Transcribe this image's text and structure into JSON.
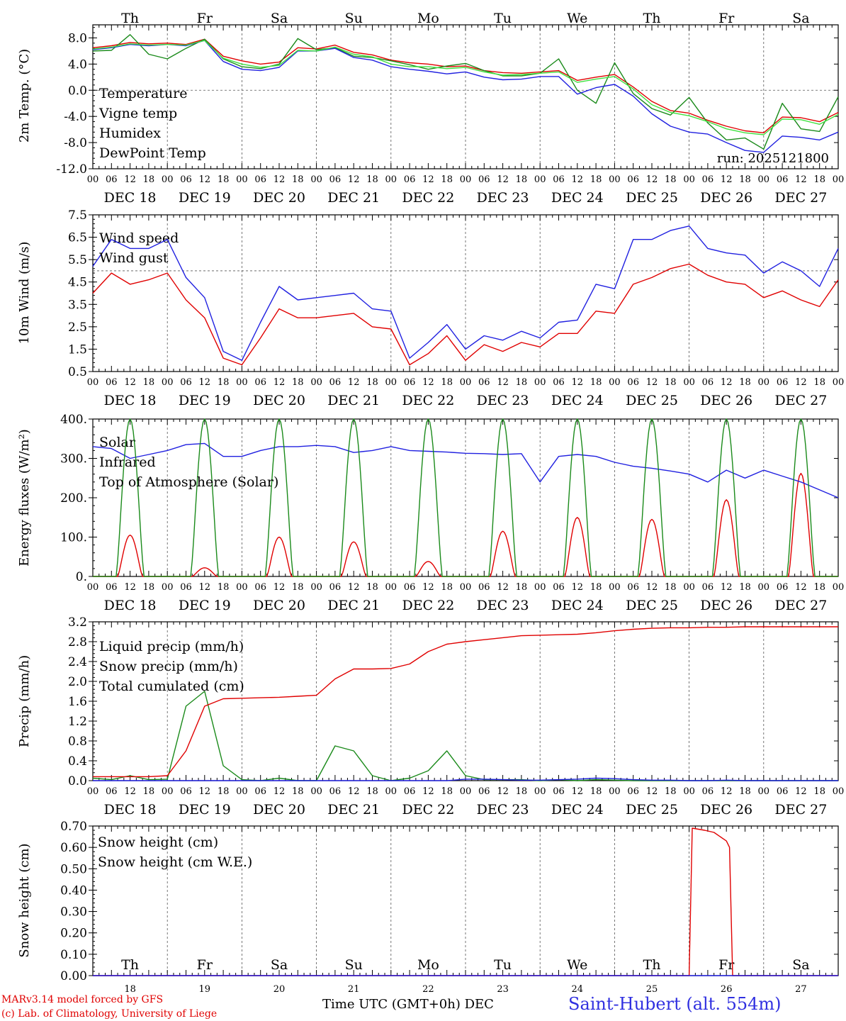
{
  "chart_data": [
    {
      "type": "line",
      "ylabel": "2m Temp. (°C)",
      "ylim": [
        -12,
        10
      ],
      "yticks": [
        8.0,
        4.0,
        0.0,
        -4.0,
        -8.0,
        -12.0
      ],
      "ytick_labels": [
        "8.0",
        "4.0",
        "0.0",
        "-4.0",
        "-8.0",
        "-12.0"
      ],
      "reference_line": 0,
      "annotation": "run: 2025121800",
      "x_hours": [
        0,
        6,
        12,
        18,
        24,
        30,
        36,
        42,
        48,
        54,
        60,
        66,
        72,
        78,
        84,
        90,
        96,
        102,
        108,
        114,
        120,
        126,
        132,
        138,
        144,
        150,
        156,
        162,
        168,
        174,
        180,
        186,
        192,
        198,
        204,
        210,
        216,
        222,
        228,
        234,
        240
      ],
      "series": [
        {
          "name": "Temperature",
          "color": "#e00000",
          "values": [
            6.5,
            6.8,
            7.3,
            7.1,
            7.2,
            7.0,
            7.8,
            5.2,
            4.5,
            4.0,
            4.3,
            6.5,
            6.3,
            6.9,
            5.8,
            5.4,
            4.6,
            4.2,
            4.0,
            3.6,
            3.7,
            3.0,
            2.7,
            2.6,
            2.8,
            3.0,
            1.5,
            2.0,
            2.4,
            0.5,
            -1.7,
            -3.1,
            -3.5,
            -4.6,
            -5.5,
            -6.2,
            -6.5,
            -4.1,
            -4.2,
            -4.8,
            -3.4
          ]
        },
        {
          "name": "Vigne temp",
          "color": "#1a8a1a",
          "values": [
            6.0,
            6.1,
            8.5,
            5.5,
            4.8,
            6.4,
            7.8,
            4.8,
            3.6,
            3.3,
            4.0,
            7.9,
            6.2,
            6.5,
            5.2,
            5.0,
            4.5,
            3.9,
            3.2,
            3.7,
            4.1,
            3.0,
            2.2,
            2.2,
            2.6,
            4.8,
            0.0,
            -2.0,
            4.2,
            -0.5,
            -2.8,
            -3.8,
            -1.1,
            -5.0,
            -7.6,
            -7.3,
            -9.0,
            -2.0,
            -5.9,
            -6.3,
            -1.0
          ]
        },
        {
          "name": "Humidex",
          "color": "#2020e0",
          "values": [
            6.2,
            6.5,
            7.0,
            6.8,
            7.0,
            6.8,
            7.6,
            4.4,
            3.2,
            3.0,
            3.5,
            6.0,
            6.0,
            6.4,
            5.0,
            4.6,
            3.6,
            3.2,
            2.9,
            2.5,
            2.8,
            2.0,
            1.6,
            1.7,
            2.1,
            2.1,
            -0.6,
            0.4,
            0.9,
            -0.9,
            -3.6,
            -5.5,
            -6.4,
            -6.7,
            -8.0,
            -9.2,
            -9.5,
            -7.0,
            -7.2,
            -7.6,
            -6.4
          ]
        },
        {
          "name": "DewPoint Temp",
          "color": "#40e040",
          "values": [
            6.3,
            6.6,
            7.1,
            6.9,
            7.0,
            6.9,
            7.6,
            4.9,
            4.0,
            3.5,
            3.8,
            6.1,
            6.0,
            6.6,
            5.5,
            5.1,
            4.0,
            3.6,
            3.6,
            3.3,
            3.5,
            2.8,
            2.3,
            2.4,
            2.6,
            2.8,
            1.2,
            1.7,
            2.1,
            0.2,
            -2.2,
            -3.4,
            -3.9,
            -4.8,
            -5.9,
            -6.5,
            -6.8,
            -4.4,
            -4.5,
            -5.2,
            -3.7
          ]
        }
      ]
    },
    {
      "type": "line",
      "ylabel": "10m Wind (m/s)",
      "ylim": [
        0.5,
        7.5
      ],
      "yticks": [
        7.5,
        6.5,
        5.5,
        4.5,
        3.5,
        2.5,
        1.5,
        0.5
      ],
      "ytick_labels": [
        "7.5",
        "6.5",
        "5.5",
        "4.5",
        "3.5",
        "2.5",
        "1.5",
        "0.5"
      ],
      "reference_line": 5.0,
      "x_hours": [
        0,
        6,
        12,
        18,
        24,
        30,
        36,
        42,
        48,
        54,
        60,
        66,
        72,
        78,
        84,
        90,
        96,
        102,
        108,
        114,
        120,
        126,
        132,
        138,
        144,
        150,
        156,
        162,
        168,
        174,
        180,
        186,
        192,
        198,
        204,
        210,
        216,
        222,
        228,
        234,
        240
      ],
      "series": [
        {
          "name": "Wind speed",
          "color": "#e00000",
          "values": [
            4.0,
            4.9,
            4.4,
            4.6,
            4.9,
            3.7,
            2.9,
            1.1,
            0.8,
            2.0,
            3.3,
            2.9,
            2.9,
            3.0,
            3.1,
            2.5,
            2.4,
            0.8,
            1.3,
            2.1,
            1.0,
            1.7,
            1.4,
            1.8,
            1.6,
            2.2,
            2.2,
            3.2,
            3.1,
            4.4,
            4.7,
            5.1,
            5.3,
            4.8,
            4.5,
            4.4,
            3.8,
            4.1,
            3.7,
            3.4,
            4.6
          ]
        },
        {
          "name": "Wind gust",
          "color": "#2020e0",
          "values": [
            5.2,
            6.4,
            6.0,
            6.0,
            6.4,
            4.7,
            3.8,
            1.4,
            1.0,
            2.7,
            4.3,
            3.7,
            3.8,
            3.9,
            4.0,
            3.3,
            3.2,
            1.1,
            1.8,
            2.6,
            1.5,
            2.1,
            1.9,
            2.3,
            2.0,
            2.7,
            2.8,
            4.4,
            4.2,
            6.4,
            6.4,
            6.8,
            7.0,
            6.0,
            5.8,
            5.7,
            4.9,
            5.4,
            5.0,
            4.3,
            6.0
          ]
        }
      ]
    },
    {
      "type": "line",
      "ylabel": "Energy fluxes (W/m²)",
      "ylim": [
        0,
        400
      ],
      "yticks": [
        400,
        300,
        200,
        100,
        0
      ],
      "ytick_labels": [
        "400.",
        "300.",
        "200.",
        "100.",
        "0."
      ],
      "x_hours": [
        0,
        6,
        12,
        18,
        24,
        30,
        36,
        42,
        48,
        54,
        60,
        66,
        72,
        78,
        84,
        90,
        96,
        102,
        108,
        114,
        120,
        126,
        132,
        138,
        144,
        150,
        156,
        162,
        168,
        174,
        180,
        186,
        192,
        198,
        204,
        210,
        216,
        222,
        228,
        234,
        240
      ],
      "daily_peaks_hour": [
        12,
        36,
        60,
        84,
        108,
        132,
        156,
        180,
        204,
        228
      ],
      "series": [
        {
          "name": "Solar",
          "color": "#e00000",
          "peaks": [
            105,
            22,
            100,
            88,
            38,
            115,
            150,
            145,
            195,
            262
          ]
        },
        {
          "name": "Infrared",
          "color": "#2020e0",
          "values": [
            330,
            325,
            300,
            310,
            320,
            335,
            338,
            305,
            305,
            320,
            330,
            330,
            333,
            330,
            315,
            320,
            330,
            320,
            318,
            316,
            313,
            312,
            310,
            312,
            240,
            305,
            310,
            305,
            290,
            280,
            275,
            268,
            260,
            240,
            270,
            250,
            270,
            255,
            240,
            220,
            200
          ]
        },
        {
          "name": "Top of Atmosphere (Solar)",
          "color": "#1a8a1a",
          "peaks": [
            400,
            400,
            400,
            400,
            400,
            400,
            400,
            400,
            400,
            400
          ]
        }
      ]
    },
    {
      "type": "line",
      "ylabel": "Precip (mm/h)",
      "ylim": [
        0,
        3.2
      ],
      "yticks": [
        3.2,
        2.8,
        2.4,
        2.0,
        1.6,
        1.2,
        0.8,
        0.4,
        0.0
      ],
      "ytick_labels": [
        "3.2",
        "2.8",
        "2.4",
        "2.0",
        "1.6",
        "1.2",
        "0.8",
        "0.4",
        "0.0"
      ],
      "x_hours": [
        0,
        6,
        12,
        18,
        24,
        30,
        36,
        42,
        48,
        54,
        60,
        66,
        72,
        78,
        84,
        90,
        96,
        102,
        108,
        114,
        120,
        126,
        132,
        138,
        144,
        150,
        156,
        162,
        168,
        174,
        180,
        186,
        192,
        198,
        204,
        210,
        216,
        222,
        228,
        234,
        240
      ],
      "series": [
        {
          "name": "Liquid precip (mm/h)",
          "color": "#1a8a1a",
          "values": [
            0.05,
            0.02,
            0.1,
            0.02,
            0.03,
            1.5,
            1.8,
            0.3,
            0.02,
            0.0,
            0.05,
            0.0,
            0.0,
            0.7,
            0.6,
            0.1,
            0.0,
            0.05,
            0.2,
            0.6,
            0.1,
            0.02,
            0.02,
            0.02,
            0.0,
            0.02,
            0.0,
            0.02,
            0.01,
            0.0,
            0.0,
            0.0,
            0.0,
            0.0,
            0.0,
            0.0,
            0.0,
            0.0,
            0.0,
            0.0,
            0.0
          ]
        },
        {
          "name": "Snow precip (mm/h)",
          "color": "#2020e0",
          "values": [
            0.0,
            0.0,
            0.0,
            0.0,
            0.0,
            0.0,
            0.0,
            0.0,
            0.0,
            0.0,
            0.0,
            0.0,
            0.0,
            0.0,
            0.0,
            0.0,
            0.0,
            0.0,
            0.0,
            0.0,
            0.03,
            0.03,
            0.02,
            0.01,
            0.01,
            0.02,
            0.03,
            0.05,
            0.04,
            0.02,
            0.01,
            0.01,
            0.0,
            0.0,
            0.01,
            0.0,
            0.0,
            0.0,
            0.0,
            0.0,
            0.0
          ]
        },
        {
          "name": "Total cumulated (cm)",
          "color": "#e00000",
          "values": [
            0.08,
            0.08,
            0.08,
            0.08,
            0.1,
            0.6,
            1.5,
            1.65,
            1.66,
            1.67,
            1.68,
            1.7,
            1.72,
            2.05,
            2.25,
            2.25,
            2.26,
            2.35,
            2.6,
            2.75,
            2.8,
            2.84,
            2.88,
            2.92,
            2.93,
            2.94,
            2.95,
            2.98,
            3.02,
            3.05,
            3.07,
            3.08,
            3.08,
            3.09,
            3.09,
            3.1,
            3.1,
            3.1,
            3.1,
            3.1,
            3.1
          ]
        }
      ]
    },
    {
      "type": "line",
      "ylabel": "Snow height (cm)",
      "ylim": [
        0,
        0.7
      ],
      "yticks": [
        0.7,
        0.6,
        0.5,
        0.4,
        0.3,
        0.2,
        0.1,
        0.0
      ],
      "ytick_labels": [
        "0.70",
        "0.60",
        "0.50",
        "0.40",
        "0.30",
        "0.20",
        "0.10",
        "0.00"
      ],
      "x_hours": [
        0,
        6,
        12,
        18,
        24,
        30,
        36,
        42,
        48,
        54,
        60,
        66,
        72,
        78,
        84,
        90,
        96,
        102,
        108,
        114,
        120,
        126,
        132,
        138,
        144,
        150,
        156,
        162,
        168,
        174,
        180,
        186,
        192,
        198,
        204,
        210,
        216,
        222,
        228,
        234,
        240
      ],
      "series": [
        {
          "name": "Snow height (cm)",
          "color": "#e00000",
          "points": [
            [
              0,
              0
            ],
            [
              192,
              0
            ],
            [
              193,
              0.69
            ],
            [
              197,
              0.68
            ],
            [
              200,
              0.67
            ],
            [
              204,
              0.63
            ],
            [
              205,
              0.6
            ],
            [
              206,
              0
            ],
            [
              240,
              0
            ]
          ]
        },
        {
          "name": "Snow height (cm W.E.)",
          "color": "#2020e0",
          "points": [
            [
              0,
              0
            ],
            [
              240,
              0
            ]
          ]
        }
      ]
    }
  ],
  "x_axis": {
    "hour_labels": [
      "00",
      "06",
      "12",
      "18"
    ],
    "final_hour_label": "00",
    "date_labels": [
      "DEC 18",
      "DEC 19",
      "DEC 20",
      "DEC 21",
      "DEC 22",
      "DEC 23",
      "DEC 24",
      "DEC 25",
      "DEC 26",
      "DEC 27"
    ],
    "day_names": [
      "Th",
      "Fr",
      "Sa",
      "Su",
      "Mo",
      "Tu",
      "We",
      "Th",
      "Fr",
      "Sa"
    ],
    "weekend_flags": [
      false,
      false,
      true,
      true,
      false,
      false,
      false,
      false,
      false,
      true
    ],
    "bottom_day_numbers": [
      "18",
      "19",
      "20",
      "21",
      "22",
      "23",
      "24",
      "25",
      "26",
      "27"
    ],
    "time_label": "Time UTC (GMT+0h)",
    "month_label": "DEC"
  },
  "colors": {
    "red": "#e00000",
    "green": "#1a8a1a",
    "blue": "#2020e0",
    "lightgreen": "#40e040"
  },
  "footer": {
    "model_line": "MARv3.14 model forced by GFS",
    "lab_line": "(c) Lab. of Climatology, University of Liege"
  },
  "station": "Saint-Hubert (alt. 554m)"
}
